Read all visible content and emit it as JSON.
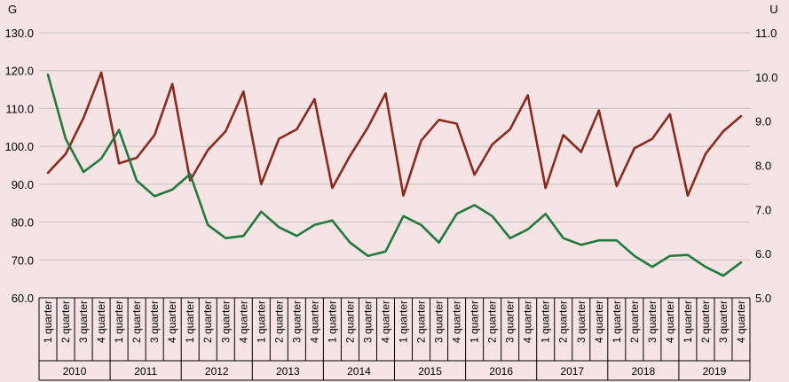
{
  "chart_data": {
    "type": "line",
    "title": "",
    "left_axis_label": "G",
    "right_axis_label": "U",
    "left_ylim": [
      60,
      130
    ],
    "left_ticks": [
      "60.0",
      "70.0",
      "80.0",
      "90.0",
      "100.0",
      "110.0",
      "120.0",
      "130.0"
    ],
    "right_ylim": [
      5,
      11
    ],
    "right_ticks": [
      "5.0",
      "6.0",
      "7.0",
      "8.0",
      "9.0",
      "10.0",
      "11.0"
    ],
    "grid": true,
    "quarter_labels": [
      "1 quarter",
      "2 quarter",
      "3 quarter",
      "4 quarter"
    ],
    "years": [
      "2010",
      "2011",
      "2012",
      "2013",
      "2014",
      "2015",
      "2016",
      "2017",
      "2018",
      "2019"
    ],
    "series": [
      {
        "axis": "left",
        "color": "#8b2a1f",
        "values": [
          93.0,
          98.0,
          107.5,
          119.5,
          95.5,
          97.0,
          103.0,
          116.5,
          91.0,
          99.0,
          104.0,
          114.5,
          90.0,
          102.0,
          104.5,
          112.5,
          89.0,
          97.5,
          105.0,
          114.0,
          87.0,
          101.5,
          107.0,
          106.0,
          92.5,
          100.5,
          104.5,
          113.5,
          89.0,
          103.0,
          98.5,
          109.5,
          89.5,
          99.5,
          102.0,
          108.5,
          87.0,
          98.0,
          104.0,
          108.0
        ]
      },
      {
        "axis": "right",
        "color": "#1f7a3e",
        "values": [
          10.05,
          8.6,
          7.85,
          8.15,
          8.8,
          7.65,
          7.3,
          7.45,
          7.8,
          6.65,
          6.35,
          6.4,
          6.95,
          6.6,
          6.4,
          6.65,
          6.75,
          6.25,
          5.95,
          6.05,
          6.85,
          6.65,
          6.25,
          6.9,
          7.1,
          6.85,
          6.35,
          6.55,
          6.9,
          6.35,
          6.2,
          6.3,
          6.3,
          5.95,
          5.7,
          5.95,
          5.97,
          5.7,
          5.5,
          5.8
        ]
      }
    ]
  }
}
